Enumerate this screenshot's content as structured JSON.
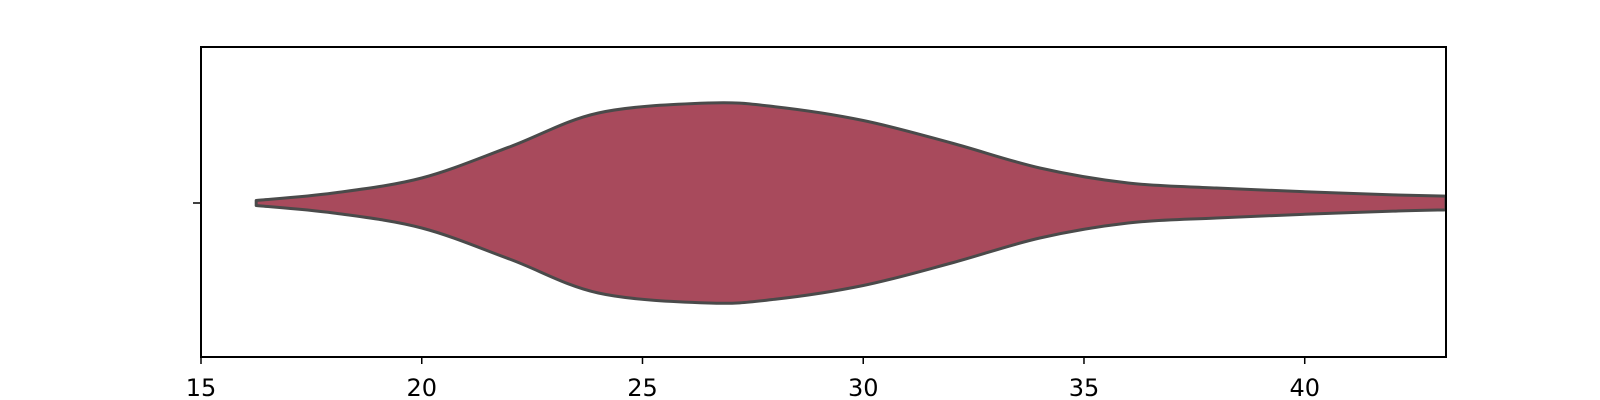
{
  "chart_data": {
    "type": "violin",
    "orientation": "horizontal",
    "title": "",
    "xlabel": "",
    "ylabel": "",
    "xlim": [
      15,
      43.2
    ],
    "x_ticks": [
      15,
      20,
      25,
      30,
      35,
      40
    ],
    "x_tick_labels": [
      "15",
      "20",
      "25",
      "30",
      "35",
      "40"
    ],
    "y_ticks": [
      0
    ],
    "y_tick_labels": [
      ""
    ],
    "grid": false,
    "legend": "none",
    "series": [
      {
        "fill_color": "#a84a5c",
        "edge_color": "#4a4a4a",
        "min": 16.25,
        "max": 43.2,
        "peak_x": 26.5,
        "density_profile": [
          {
            "x": 16.25,
            "w": 0.02
          },
          {
            "x": 18.0,
            "w": 0.08
          },
          {
            "x": 20.0,
            "w": 0.2
          },
          {
            "x": 22.0,
            "w": 0.45
          },
          {
            "x": 24.0,
            "w": 0.72
          },
          {
            "x": 26.5,
            "w": 0.8
          },
          {
            "x": 28.0,
            "w": 0.77
          },
          {
            "x": 30.0,
            "w": 0.66
          },
          {
            "x": 32.0,
            "w": 0.48
          },
          {
            "x": 34.0,
            "w": 0.28
          },
          {
            "x": 36.0,
            "w": 0.16
          },
          {
            "x": 38.0,
            "w": 0.12
          },
          {
            "x": 40.0,
            "w": 0.09
          },
          {
            "x": 42.0,
            "w": 0.065
          },
          {
            "x": 43.2,
            "w": 0.055
          }
        ]
      }
    ]
  }
}
